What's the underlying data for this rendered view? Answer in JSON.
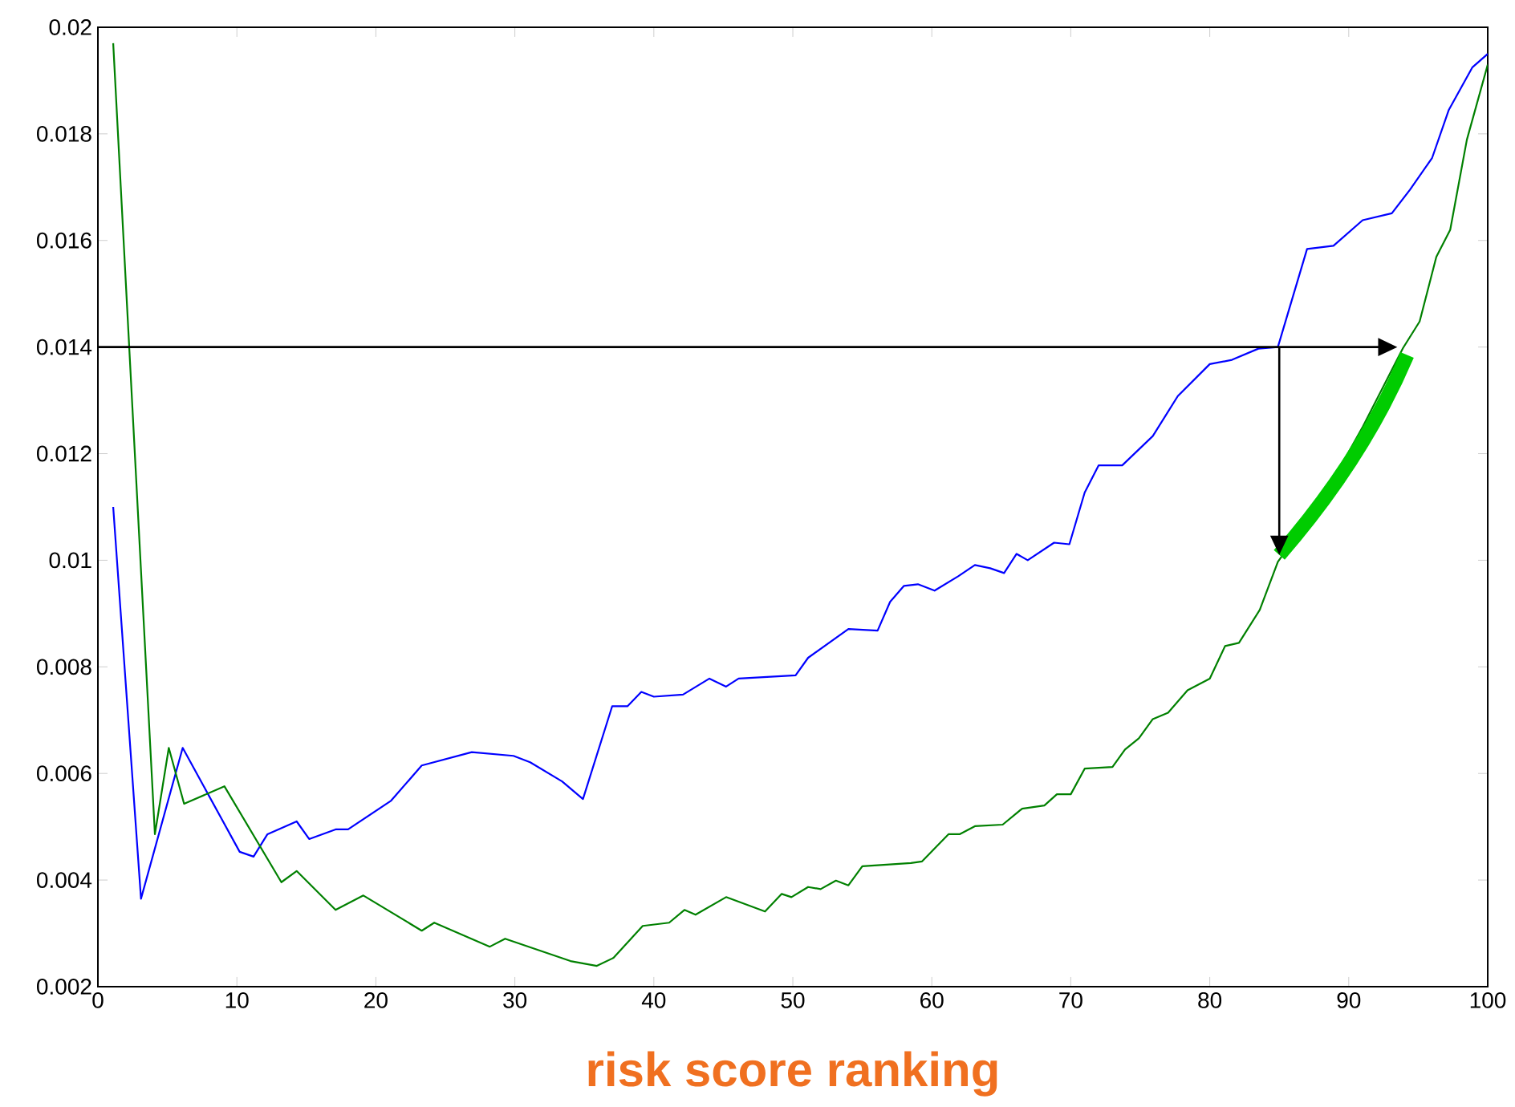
{
  "chart_data": {
    "type": "line",
    "xlabel": "risk score ranking",
    "xlim": [
      0,
      100
    ],
    "ylim": [
      0.002,
      0.02
    ],
    "xticks": [
      0,
      10,
      20,
      30,
      40,
      50,
      60,
      70,
      80,
      90,
      100
    ],
    "yticks": [
      0.002,
      0.004,
      0.006,
      0.008,
      0.01,
      0.012,
      0.014,
      0.016,
      0.018,
      0.02
    ],
    "marker": "none",
    "line_style": "solid",
    "series": [
      {
        "color": "#0000ff",
        "x": [
          1.1,
          3.1,
          6.1,
          10.2,
          11.2,
          12.2,
          14.3,
          15.2,
          17.1,
          18,
          21.1,
          23.3,
          26.9,
          29.9,
          31.1,
          33.4,
          34.9,
          37,
          38.1,
          39.1,
          40,
          42.1,
          44,
          45.2,
          46.1,
          50.2,
          51.1,
          54,
          56.1,
          57,
          58,
          59,
          60.2,
          61.9,
          63.1,
          64.2,
          65.2,
          66.1,
          66.9,
          68.8,
          69.9,
          71,
          72,
          73.7,
          75.9,
          77.7,
          80,
          81.6,
          83.5,
          84.9,
          87,
          88.9,
          91,
          93.1,
          94.4,
          96,
          97.2,
          98.9,
          100
        ],
        "values": [
          0.011,
          0.00365,
          0.00648,
          0.00453,
          0.00444,
          0.00486,
          0.0051,
          0.00477,
          0.00495,
          0.00495,
          0.00549,
          0.00615,
          0.0064,
          0.00633,
          0.00621,
          0.00585,
          0.00552,
          0.00726,
          0.00726,
          0.00753,
          0.00744,
          0.00748,
          0.00778,
          0.00763,
          0.00778,
          0.00784,
          0.00817,
          0.00871,
          0.00868,
          0.00922,
          0.00952,
          0.00955,
          0.00943,
          0.0097,
          0.00991,
          0.00985,
          0.00976,
          0.01012,
          0.01,
          0.01033,
          0.0103,
          0.01127,
          0.01178,
          0.01178,
          0.01233,
          0.01308,
          0.01368,
          0.01376,
          0.01397,
          0.014,
          0.01584,
          0.0159,
          0.01638,
          0.01651,
          0.01695,
          0.01755,
          0.01845,
          0.01925,
          0.0195
        ]
      },
      {
        "color": "#008000",
        "x": [
          1.1,
          4.1,
          5.1,
          6.2,
          9.1,
          13.2,
          14.3,
          17.1,
          19.1,
          23.3,
          24.2,
          28.2,
          29.3,
          34,
          35.9,
          37.1,
          39.2,
          41.1,
          42.2,
          43,
          45.2,
          48,
          49.2,
          49.9,
          51.1,
          52,
          53.1,
          54,
          55,
          58.5,
          59.3,
          61.2,
          62,
          63.1,
          65.1,
          66.5,
          68.1,
          69,
          70,
          71,
          73,
          73.9,
          74.9,
          75.9,
          77,
          78.4,
          80,
          81.1,
          82.1,
          83.6,
          84.9,
          88,
          91,
          93.9,
          95.1,
          96.3,
          97.3,
          98.5,
          100
        ],
        "values": [
          0.0197,
          0.00486,
          0.00648,
          0.00543,
          0.00576,
          0.00396,
          0.00417,
          0.00344,
          0.00371,
          0.00305,
          0.0032,
          0.00275,
          0.0029,
          0.00248,
          0.00239,
          0.00254,
          0.00314,
          0.0032,
          0.00344,
          0.00335,
          0.00368,
          0.00341,
          0.00374,
          0.00368,
          0.00387,
          0.00383,
          0.00399,
          0.0039,
          0.00426,
          0.00432,
          0.00435,
          0.00486,
          0.00486,
          0.00501,
          0.00504,
          0.00534,
          0.0054,
          0.00561,
          0.00561,
          0.00609,
          0.00612,
          0.00645,
          0.00666,
          0.00702,
          0.00714,
          0.00756,
          0.00778,
          0.00839,
          0.00845,
          0.00907,
          0.00997,
          0.0111,
          0.0125,
          0.01398,
          0.01448,
          0.01569,
          0.0162,
          0.01789,
          0.0193
        ]
      }
    ]
  }
}
